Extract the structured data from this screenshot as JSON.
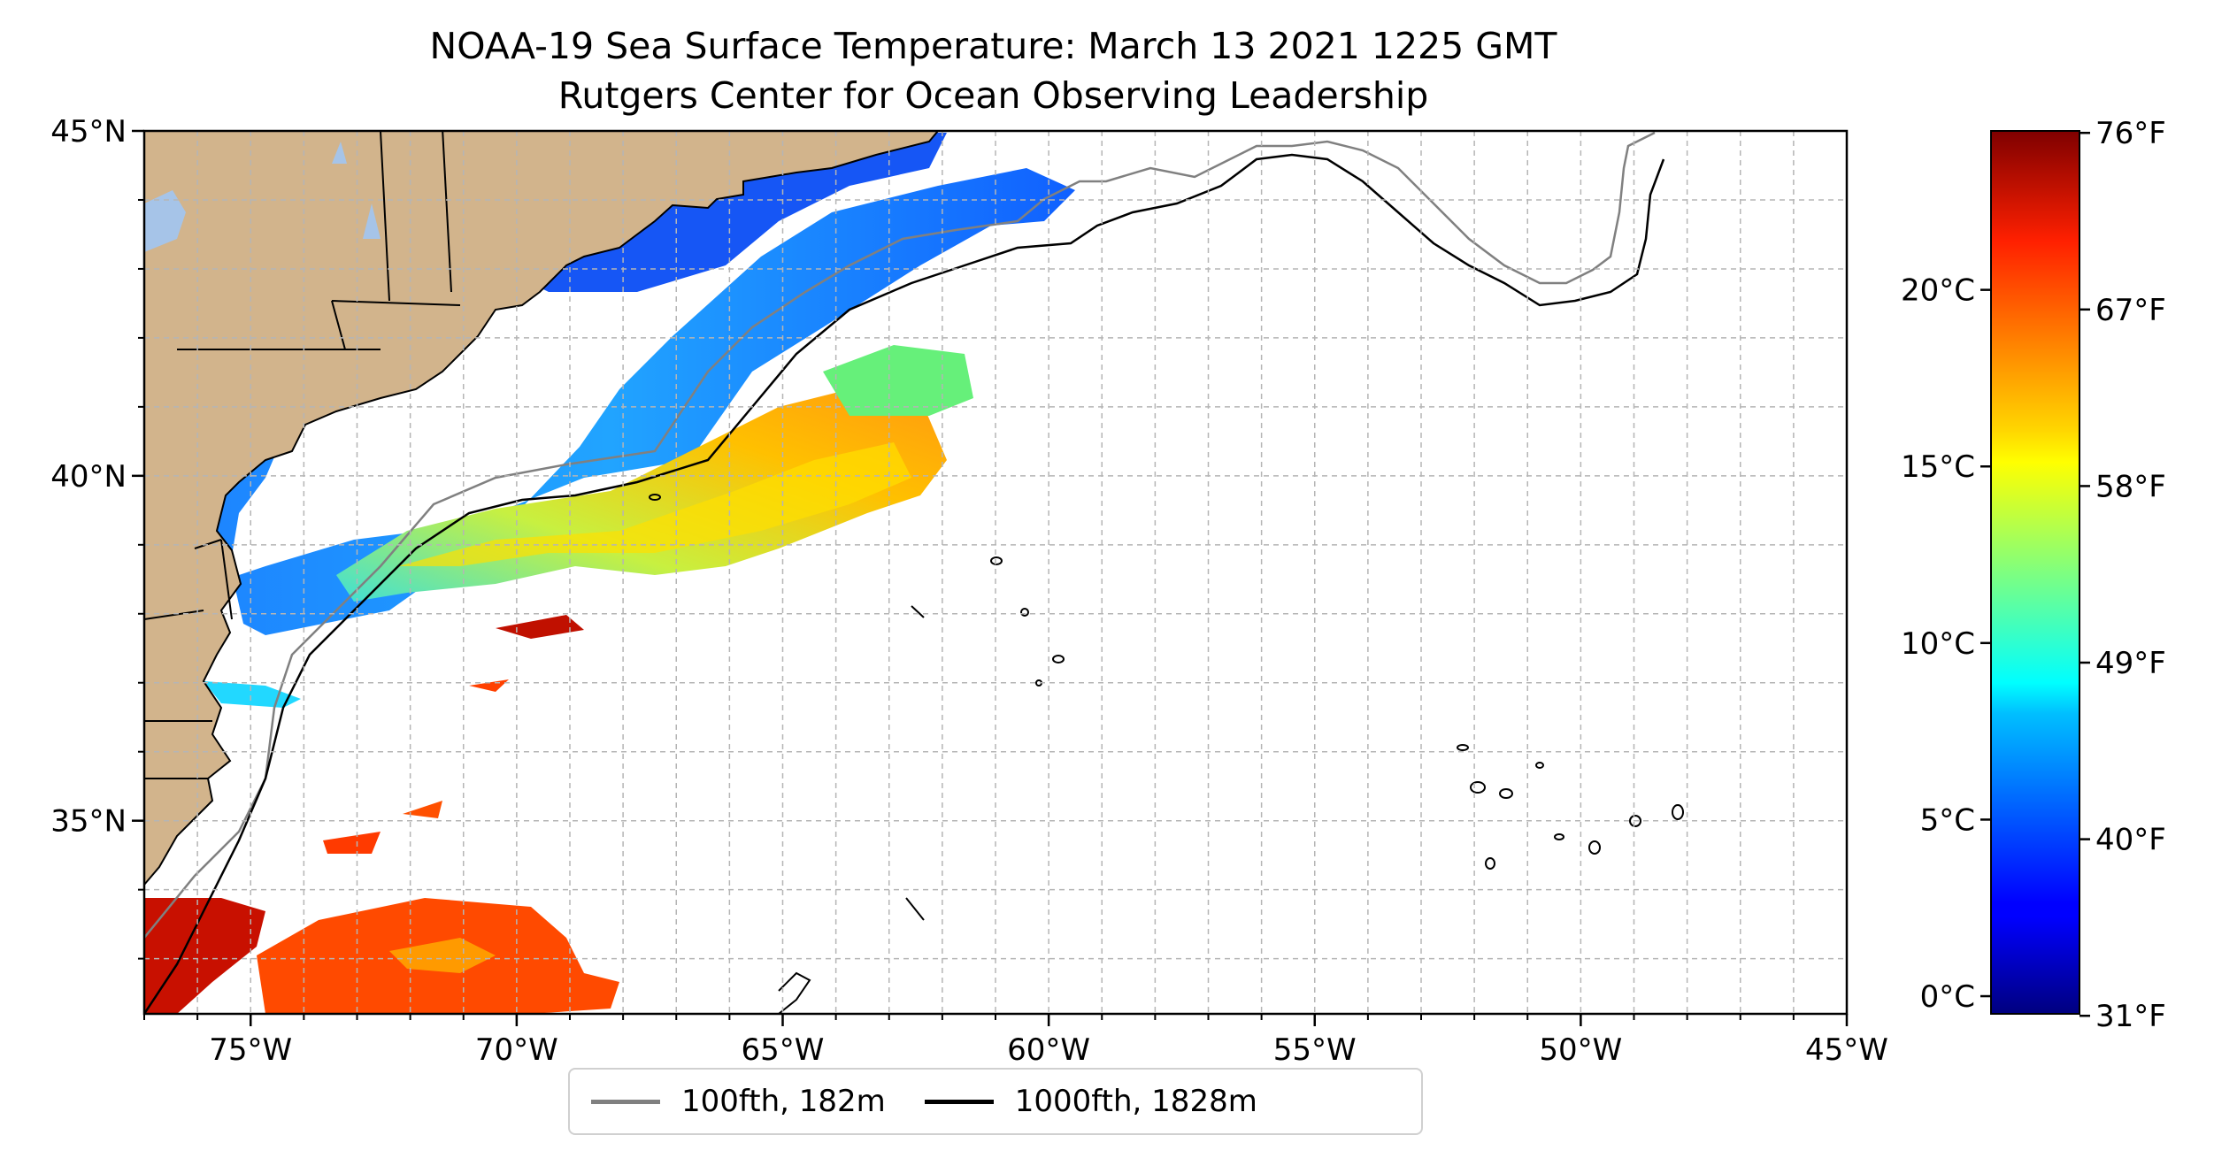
{
  "header": {
    "title": "NOAA-19 Sea Surface Temperature: March 13 2021 1225 GMT",
    "subtitle": "Rutgers Center for Ocean Observing Leadership"
  },
  "map": {
    "lon_range": [
      -77,
      -45
    ],
    "lat_range": [
      32.2,
      45
    ],
    "lat_ticks": [
      {
        "value": 45,
        "label": "45°N"
      },
      {
        "value": 40,
        "label": "40°N"
      },
      {
        "value": 35,
        "label": "35°N"
      }
    ],
    "lon_ticks": [
      {
        "value": -75,
        "label": "75°W"
      },
      {
        "value": -70,
        "label": "70°W"
      },
      {
        "value": -65,
        "label": "65°W"
      },
      {
        "value": -60,
        "label": "60°W"
      },
      {
        "value": -55,
        "label": "55°W"
      },
      {
        "value": -50,
        "label": "50°W"
      },
      {
        "value": -45,
        "label": "45°W"
      }
    ],
    "gridlines": true,
    "colors": {
      "land": "#d2b48c",
      "lakes": "#a6c4e8",
      "isobath_100": "#808080",
      "isobath_1000": "#000000"
    }
  },
  "colorbar": {
    "colormap": "jet",
    "range_c": [
      -0.5,
      24.5
    ],
    "celsius_ticks": [
      {
        "value": 0,
        "label": "0°C"
      },
      {
        "value": 5,
        "label": "5°C"
      },
      {
        "value": 10,
        "label": "10°C"
      },
      {
        "value": 15,
        "label": "15°C"
      },
      {
        "value": 20,
        "label": "20°C"
      }
    ],
    "fahrenheit_ticks": [
      {
        "value": 31,
        "label": "31°F"
      },
      {
        "value": 40,
        "label": "40°F"
      },
      {
        "value": 49,
        "label": "49°F"
      },
      {
        "value": 58,
        "label": "58°F"
      },
      {
        "value": 67,
        "label": "67°F"
      },
      {
        "value": 76,
        "label": "76°F"
      }
    ]
  },
  "legend": {
    "items": [
      {
        "label": "100fth, 182m",
        "color": "#808080"
      },
      {
        "label": "1000fth, 1828m",
        "color": "#000000"
      }
    ]
  }
}
